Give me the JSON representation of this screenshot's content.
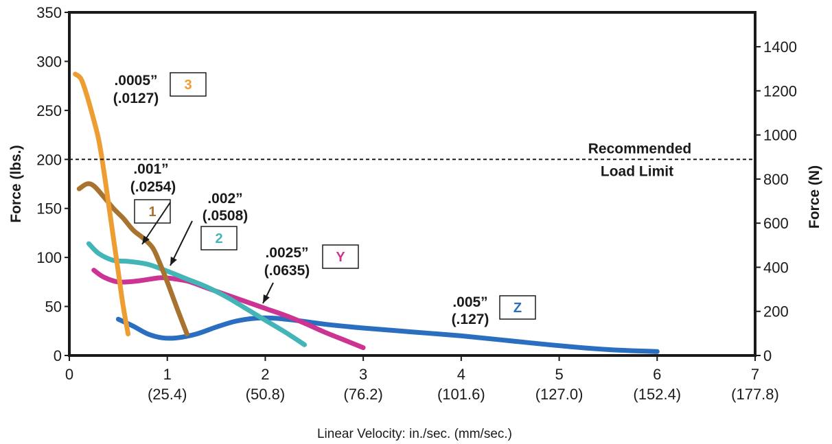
{
  "chart_data": {
    "type": "line",
    "title": "",
    "xlabel": "Linear Velocity:  in./sec. (mm/sec.)",
    "ylabel": "Force (lbs.)",
    "y2label": "Force (N)",
    "xlim": [
      0,
      7
    ],
    "ylim": [
      0,
      350
    ],
    "y2lim": [
      0,
      1556
    ],
    "grid": false,
    "legend": "none",
    "x_ticks": [
      {
        "value": 0,
        "label": "0",
        "sub": ""
      },
      {
        "value": 1,
        "label": "1",
        "sub": "(25.4)"
      },
      {
        "value": 2,
        "label": "2",
        "sub": "(50.8)"
      },
      {
        "value": 3,
        "label": "3",
        "sub": "(76.2)"
      },
      {
        "value": 4,
        "label": "4",
        "sub": "(101.6)"
      },
      {
        "value": 5,
        "label": "5",
        "sub": "(127.0)"
      },
      {
        "value": 6,
        "label": "6",
        "sub": "(152.4)"
      },
      {
        "value": 7,
        "label": "7",
        "sub": "(177.8)"
      }
    ],
    "y_ticks": [
      0,
      50,
      100,
      150,
      200,
      250,
      300,
      350
    ],
    "y2_ticks": [
      0,
      200,
      400,
      600,
      800,
      1000,
      1200,
      1400
    ],
    "reference_line": {
      "y": 200,
      "label1": "Recommended",
      "label2": "Load Limit"
    },
    "series": [
      {
        "name": "3",
        "value_in": ".0005”",
        "value_mm": "(.0127)",
        "color": "#ee9d33",
        "x": [
          0.06,
          0.12,
          0.18,
          0.25,
          0.3,
          0.35,
          0.4,
          0.45,
          0.5,
          0.55,
          0.6
        ],
        "y": [
          287,
          282,
          265,
          240,
          220,
          190,
          155,
          120,
          85,
          50,
          22
        ]
      },
      {
        "name": "1",
        "value_in": ".001”",
        "value_mm": "(.0254)",
        "color": "#a8722f",
        "x": [
          0.1,
          0.18,
          0.25,
          0.35,
          0.45,
          0.55,
          0.65,
          0.75,
          0.85,
          0.92,
          1.0,
          1.1,
          1.2
        ],
        "y": [
          170,
          175,
          173,
          162,
          150,
          140,
          128,
          120,
          110,
          95,
          75,
          48,
          22
        ]
      },
      {
        "name": "2",
        "value_in": ".002”",
        "value_mm": "(.0508)",
        "color": "#44b5b7",
        "x": [
          0.2,
          0.3,
          0.45,
          0.6,
          0.8,
          1.0,
          1.2,
          1.4,
          1.6,
          1.8,
          2.0,
          2.2,
          2.4
        ],
        "y": [
          114,
          104,
          97,
          96,
          93,
          86,
          78,
          70,
          60,
          48,
          36,
          24,
          11
        ]
      },
      {
        "name": "Y",
        "value_in": ".0025”",
        "value_mm": "(.0635)",
        "color": "#cc3494",
        "x": [
          0.25,
          0.35,
          0.5,
          0.7,
          0.9,
          1.0,
          1.2,
          1.4,
          1.6,
          1.8,
          2.0,
          2.2,
          2.4,
          2.6,
          2.8,
          3.0
        ],
        "y": [
          87,
          80,
          75,
          76,
          79,
          79,
          76,
          69,
          62,
          55,
          48,
          41,
          33,
          24,
          16,
          8
        ]
      },
      {
        "name": "Z",
        "value_in": ".005”",
        "value_mm": "(.127)",
        "color": "#2a6fbf",
        "x": [
          0.5,
          0.65,
          0.8,
          0.95,
          1.1,
          1.3,
          1.5,
          1.7,
          1.9,
          2.1,
          2.3,
          2.6,
          3.0,
          3.5,
          4.0,
          4.5,
          5.0,
          5.5,
          6.0
        ],
        "y": [
          37,
          30,
          22,
          18,
          18,
          22,
          29,
          35,
          38,
          38,
          36,
          32,
          28,
          24,
          20,
          15,
          10,
          6,
          4
        ]
      }
    ]
  }
}
